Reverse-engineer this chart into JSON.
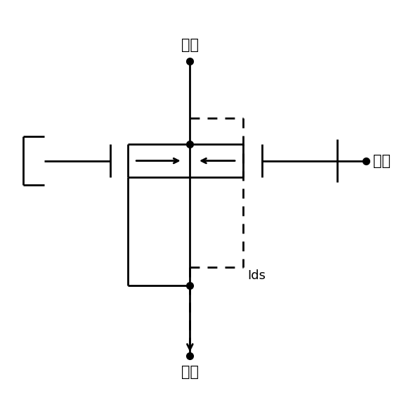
{
  "background_color": "#ffffff",
  "line_color": "#000000",
  "label_drain": "漏极",
  "label_source": "源极",
  "label_gate": "栅极",
  "label_ids": "Ids",
  "figsize": [
    5.95,
    5.93
  ],
  "dpi": 100,
  "xD": 4.54,
  "yDrain": 8.55,
  "ySource": 1.45,
  "xL_chan": 3.05,
  "xL_gate": 2.62,
  "xR_chan": 5.82,
  "xR_gate": 6.28,
  "yGateTop": 6.55,
  "yGateBot": 5.75,
  "yBotLine": 3.15,
  "xLB_l": 0.52,
  "xLB_r": 1.02,
  "xGateBar": 8.1,
  "xGateDot": 8.78,
  "yDashTop": 7.18,
  "yDashBot": 3.58,
  "lw": 2.0,
  "dot_ms": 7,
  "arrow_ms": 12
}
